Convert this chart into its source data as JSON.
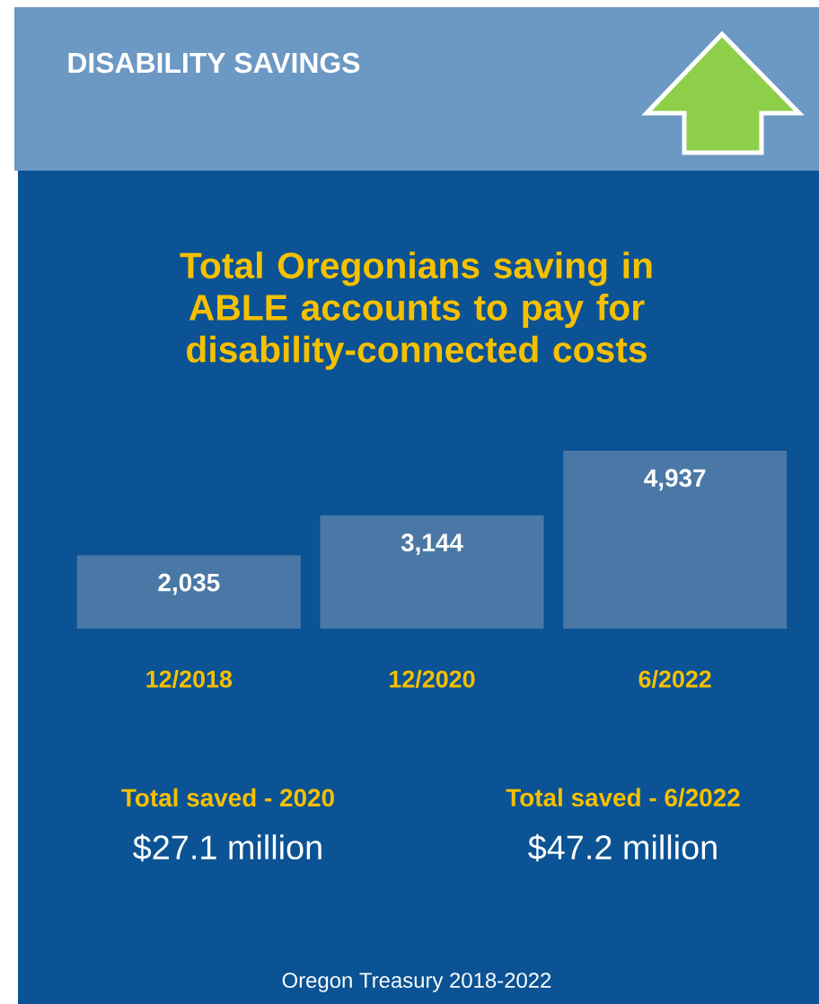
{
  "chart_data": {
    "type": "bar",
    "title": "DISABILITY SAVINGS",
    "subtitle": "Total Oregonians saving in ABLE accounts to pay for disability-connected costs",
    "categories": [
      "12/2018",
      "12/2020",
      "6/2022"
    ],
    "values": [
      2035,
      3144,
      4937
    ],
    "color": "#4a78a6",
    "data_labels": true,
    "value_labels": [
      "2,035",
      "3,144",
      "4,937"
    ],
    "annotations": [
      "Total saved - 2020",
      "$27.1 million",
      "Total saved - 6/2022",
      "$47.2 million",
      "Oregon Treasury 2018-2022"
    ]
  }
}
